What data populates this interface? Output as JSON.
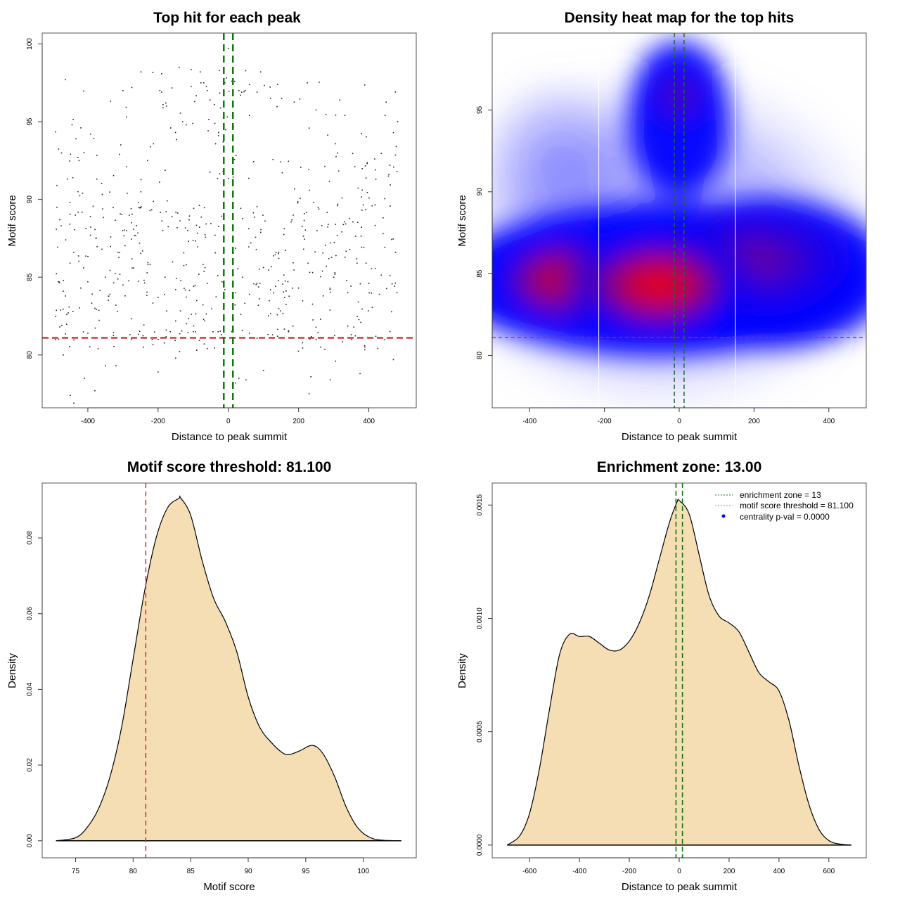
{
  "chart_data": [
    {
      "type": "scatter",
      "title": "Top hit for each peak",
      "xlabel": "Distance to peak summit",
      "ylabel": "Motif score",
      "xlim": [
        -530,
        535
      ],
      "ylim": [
        76.6,
        100.7
      ],
      "xticks": [
        -400,
        -200,
        0,
        200,
        400
      ],
      "yticks": [
        80,
        85,
        90,
        95,
        100
      ],
      "grid": false,
      "point_count_approx": 650,
      "points_sample": [
        [
          -488,
          90.9
        ],
        [
          -476,
          88.3
        ],
        [
          -463,
          87.4
        ],
        [
          -445,
          94.8
        ],
        [
          -434,
          93.9
        ],
        [
          -425,
          92.5
        ],
        [
          -428,
          90.5
        ],
        [
          -415,
          90.4
        ],
        [
          -392,
          94.2
        ],
        [
          -360,
          86.8
        ],
        [
          -300,
          97.0
        ],
        [
          -290,
          95.3
        ],
        [
          -310,
          92.9
        ],
        [
          -290,
          92.1
        ],
        [
          -288,
          90.4
        ],
        [
          -230,
          92.5
        ],
        [
          -195,
          97.0
        ],
        [
          -190,
          96.9
        ],
        [
          -186,
          96.1
        ],
        [
          -186,
          95.9
        ],
        [
          -178,
          96.2
        ],
        [
          -140,
          98.5
        ],
        [
          -130,
          95.0
        ],
        [
          -120,
          94.8
        ],
        [
          -80,
          98.2
        ],
        [
          -78,
          97.5
        ],
        [
          -70,
          97.5
        ],
        [
          -60,
          97.0
        ],
        [
          -52,
          96.4
        ],
        [
          -40,
          96.1
        ],
        [
          -28,
          94.1
        ],
        [
          -15,
          93.7
        ],
        [
          -10,
          97.5
        ],
        [
          10,
          97.6
        ],
        [
          0,
          99.7
        ],
        [
          18,
          97.6
        ],
        [
          30,
          97.0
        ],
        [
          38,
          96.9
        ],
        [
          48,
          97.0
        ],
        [
          60,
          95.4
        ],
        [
          92,
          98.2
        ],
        [
          120,
          96.5
        ],
        [
          140,
          97.4
        ],
        [
          152,
          96.5
        ],
        [
          225,
          97.5
        ],
        [
          332,
          95.4
        ],
        [
          395,
          92.3
        ],
        [
          420,
          91.3
        ],
        [
          460,
          92.2
        ],
        [
          470,
          94.3
        ],
        [
          478,
          93.4
        ],
        [
          482,
          95.0
        ],
        [
          480,
          91.8
        ],
        [
          360,
          92.1
        ],
        [
          -470,
          84.1
        ],
        [
          -460,
          82.6
        ],
        [
          -440,
          86.6
        ],
        [
          -420,
          84.3
        ],
        [
          -400,
          84.7
        ],
        [
          -380,
          83.0
        ],
        [
          -350,
          85.0
        ],
        [
          -320,
          83.2
        ],
        [
          -300,
          84.5
        ],
        [
          -270,
          85.6
        ],
        [
          -240,
          84.8
        ],
        [
          -200,
          83.7
        ],
        [
          -180,
          85.0
        ],
        [
          -150,
          84.2
        ],
        [
          -120,
          85.8
        ],
        [
          -90,
          83.5
        ],
        [
          -60,
          84.6
        ],
        [
          -30,
          85.1
        ],
        [
          -10,
          84.2
        ],
        [
          20,
          84.0
        ],
        [
          40,
          85.0
        ],
        [
          60,
          83.9
        ],
        [
          90,
          84.6
        ],
        [
          120,
          84.2
        ],
        [
          160,
          83.7
        ],
        [
          200,
          84.3
        ],
        [
          240,
          85.3
        ],
        [
          270,
          83.8
        ],
        [
          300,
          85.0
        ],
        [
          340,
          84.0
        ],
        [
          370,
          83.4
        ],
        [
          400,
          84.6
        ],
        [
          430,
          83.9
        ],
        [
          460,
          85.1
        ],
        [
          480,
          84.0
        ],
        [
          -470,
          80.0
        ],
        [
          -450,
          77.4
        ],
        [
          -440,
          76.9
        ],
        [
          -410,
          78.5
        ],
        [
          -380,
          77.7
        ],
        [
          -350,
          79.3
        ],
        [
          -320,
          79.3
        ],
        [
          -200,
          78.9
        ],
        [
          -150,
          79.8
        ],
        [
          -90,
          80.3
        ],
        [
          20,
          78.2
        ],
        [
          30,
          78.5
        ],
        [
          50,
          78.4
        ],
        [
          100,
          79.0
        ],
        [
          230,
          77.5
        ],
        [
          235,
          78.6
        ],
        [
          290,
          78.4
        ],
        [
          305,
          79.6
        ],
        [
          375,
          78.8
        ],
        [
          470,
          79.7
        ],
        [
          -480,
          81.8
        ],
        [
          -430,
          81.1
        ],
        [
          -400,
          81.4
        ],
        [
          -280,
          81.3
        ],
        [
          -200,
          81.0
        ],
        [
          -100,
          81.5
        ],
        [
          -20,
          81.3
        ],
        [
          10,
          81.5
        ],
        [
          60,
          81.4
        ],
        [
          140,
          81.2
        ],
        [
          250,
          81.0
        ],
        [
          350,
          81.3
        ],
        [
          420,
          81.2
        ],
        [
          460,
          81.5
        ]
      ],
      "hlines": [
        {
          "y": 81.1,
          "color": "#cc2222",
          "style": "dashed",
          "label": "motif score threshold"
        }
      ],
      "vlines": [
        {
          "x": -13,
          "color": "#117711",
          "style": "dashed"
        },
        {
          "x": 13,
          "color": "#117711",
          "style": "dashed"
        }
      ]
    },
    {
      "type": "heatmap",
      "title": "Density heat map for the top hits",
      "xlabel": "Distance to peak summit",
      "ylabel": "Motif score",
      "xlim": [
        -500,
        500
      ],
      "ylim": [
        76.8,
        99.7
      ],
      "xticks": [
        -400,
        -200,
        0,
        200,
        400
      ],
      "yticks": [
        80,
        85,
        90,
        95
      ],
      "colorscale": [
        "#ffffff",
        "#0000ff",
        "#ff0000"
      ],
      "density_modes": [
        {
          "x": -55,
          "y": 84.3,
          "intensity": 1.0
        },
        {
          "x": -300,
          "y": 84.6,
          "intensity": 0.85
        },
        {
          "x": 200,
          "y": 85.5,
          "intensity": 0.65
        },
        {
          "x": 0,
          "y": 95.8,
          "intensity": 0.55
        },
        {
          "x": 380,
          "y": 83.5,
          "intensity": 0.5
        }
      ],
      "white_vlines": [
        -215,
        150
      ],
      "hlines": [
        {
          "y": 81.1,
          "color": "#cc2222",
          "style": "dashed"
        }
      ],
      "vlines": [
        {
          "x": -13,
          "color": "#226633",
          "style": "dashed"
        },
        {
          "x": 13,
          "color": "#226633",
          "style": "dashed"
        }
      ]
    },
    {
      "type": "area",
      "title": "Motif score threshold: 81.100",
      "xlabel": "Motif score",
      "ylabel": "Density",
      "xlim": [
        72.1,
        104.6
      ],
      "ylim": [
        -0.0045,
        0.0945
      ],
      "xticks": [
        75,
        80,
        85,
        90,
        95,
        100
      ],
      "yticks": [
        0.0,
        0.02,
        0.04,
        0.06,
        0.08
      ],
      "ytick_labels": [
        "0.00",
        "0.02",
        "0.04",
        "0.06",
        "0.08"
      ],
      "fill": "#f5deb3",
      "x": [
        73.3,
        75,
        76,
        77,
        78,
        79,
        80,
        81,
        82,
        83,
        84,
        84.1,
        85,
        86,
        87,
        88,
        89,
        90,
        91,
        92,
        93,
        93.6,
        94.5,
        95.6,
        96.5,
        97.5,
        98.5,
        99.5,
        100.5,
        101.5,
        103.3
      ],
      "y": [
        0.0,
        0.0008,
        0.0035,
        0.0085,
        0.017,
        0.03,
        0.048,
        0.066,
        0.08,
        0.088,
        0.0905,
        0.0907,
        0.086,
        0.074,
        0.064,
        0.058,
        0.05,
        0.038,
        0.03,
        0.026,
        0.0232,
        0.0228,
        0.0238,
        0.0252,
        0.023,
        0.017,
        0.009,
        0.0035,
        0.001,
        0.0002,
        0.0
      ],
      "vlines": [
        {
          "x": 81.1,
          "color": "#dd3333",
          "style": "dashed"
        }
      ]
    },
    {
      "type": "area",
      "title": "Enrichment zone: 13.00",
      "xlabel": "Distance to peak summit",
      "ylabel": "Density",
      "xlim": [
        -750,
        750
      ],
      "ylim": [
        -5.63e-05,
        0.001597
      ],
      "xticks": [
        -600,
        -400,
        -200,
        0,
        200,
        400,
        600
      ],
      "yticks": [
        0.0,
        0.0005,
        0.001,
        0.0015
      ],
      "ytick_labels": [
        "0.0000",
        "0.0005",
        "0.0010",
        "0.0015"
      ],
      "fill": "#f5deb3",
      "x": [
        -690,
        -640,
        -600,
        -560,
        -520,
        -480,
        -440,
        -400,
        -360,
        -320,
        -280,
        -240,
        -200,
        -160,
        -120,
        -80,
        -40,
        -10,
        0,
        40,
        80,
        120,
        160,
        200,
        240,
        280,
        320,
        360,
        400,
        440,
        480,
        520,
        560,
        600,
        640,
        690
      ],
      "y": [
        0.0,
        4e-05,
        0.00014,
        0.00034,
        0.0006,
        0.00084,
        0.00093,
        0.00092,
        0.00092,
        0.00089,
        0.00086,
        0.00086,
        0.0009,
        0.00098,
        0.0011,
        0.00126,
        0.00142,
        0.00151,
        0.00152,
        0.00146,
        0.00128,
        0.0011,
        0.00101,
        0.00098,
        0.00094,
        0.00085,
        0.00076,
        0.00072,
        0.00068,
        0.00055,
        0.00035,
        0.00018,
        7e-05,
        2e-05,
        5e-06,
        0.0
      ],
      "vlines": [
        {
          "x": -13,
          "color": "#117711",
          "style": "dashed"
        },
        {
          "x": 13,
          "color": "#117711",
          "style": "dashed"
        }
      ],
      "legend": {
        "placement": "top-right",
        "entries": [
          {
            "label": "enrichment zone = 13",
            "color": "#117711",
            "style": "dotted-line"
          },
          {
            "label": "motif score threshold = 81.100",
            "color": "#ee6666",
            "style": "dotted-line"
          },
          {
            "label": "centrality p-val = 0.0000",
            "color": "#0000ff",
            "style": "point"
          }
        ]
      }
    }
  ]
}
